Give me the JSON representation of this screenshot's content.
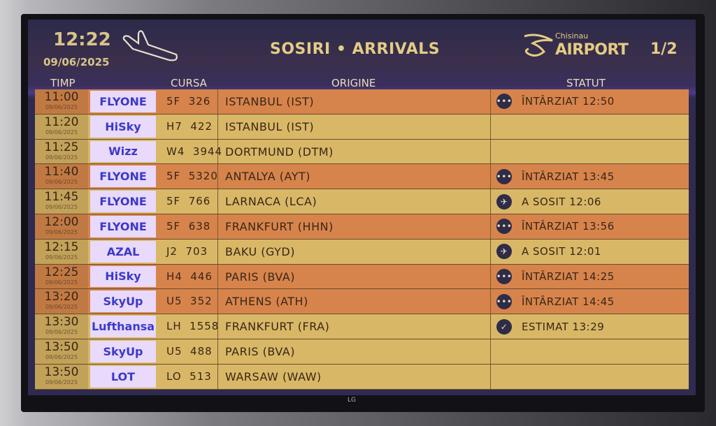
{
  "header": {
    "time": "12:22",
    "date": "09/06/2025",
    "title": "SOSIRI • ARRIVALS",
    "airport_small": "Chisinau",
    "airport_big": "AIRPORT",
    "page": "1/2"
  },
  "columns": {
    "time": "TIMP",
    "flight": "CURSA",
    "origin": "ORIGINE",
    "status": "STATUT"
  },
  "colors": {
    "delayed_row": "#d7844c",
    "normal_row": "#d8b867",
    "header_bg": "#2c2a4a",
    "header_text": "#e3cc86"
  },
  "flights": [
    {
      "time": "11:00",
      "date": "09/06/2025",
      "airline": "FLYONE",
      "flight": "5F  326",
      "origin": "ISTANBUL (IST)",
      "status": "ÎNTÂRZIAT 12:50",
      "icon": "clock-icon",
      "row": "orange"
    },
    {
      "time": "11:20",
      "date": "09/06/2025",
      "airline": "HiSky",
      "flight": "H7  422",
      "origin": "ISTANBUL (IST)",
      "status": "",
      "icon": "",
      "row": "yellow"
    },
    {
      "time": "11:25",
      "date": "09/06/2025",
      "airline": "Wizz",
      "flight": "W4  3944",
      "origin": "DORTMUND (DTM)",
      "status": "",
      "icon": "",
      "row": "yellow"
    },
    {
      "time": "11:40",
      "date": "09/06/2025",
      "airline": "FLYONE",
      "flight": "5F  5320",
      "origin": "ANTALYA (AYT)",
      "status": "ÎNTÂRZIAT 13:45",
      "icon": "clock-icon",
      "row": "orange"
    },
    {
      "time": "11:45",
      "date": "09/06/2025",
      "airline": "FLYONE",
      "flight": "5F  766",
      "origin": "LARNACA (LCA)",
      "status": "A SOSIT 12:06",
      "icon": "landing-icon",
      "row": "yellow"
    },
    {
      "time": "12:00",
      "date": "09/06/2025",
      "airline": "FLYONE",
      "flight": "5F  638",
      "origin": "FRANKFURT (HHN)",
      "status": "ÎNTÂRZIAT 13:56",
      "icon": "clock-icon",
      "row": "orange"
    },
    {
      "time": "12:15",
      "date": "09/06/2025",
      "airline": "AZAL",
      "flight": "J2  703",
      "origin": "BAKU (GYD)",
      "status": "A SOSIT 12:01",
      "icon": "landing-icon",
      "row": "yellow"
    },
    {
      "time": "12:25",
      "date": "09/06/2025",
      "airline": "HiSky",
      "flight": "H4  446",
      "origin": "PARIS (BVA)",
      "status": "ÎNTÂRZIAT 14:25",
      "icon": "clock-icon",
      "row": "orange"
    },
    {
      "time": "13:20",
      "date": "09/06/2025",
      "airline": "SkyUp",
      "flight": "U5  352",
      "origin": "ATHENS (ATH)",
      "status": "ÎNTÂRZIAT 14:45",
      "icon": "clock-icon",
      "row": "orange"
    },
    {
      "time": "13:30",
      "date": "09/06/2025",
      "airline": "Lufthansa",
      "flight": "LH  1558",
      "origin": "FRANKFURT (FRA)",
      "status": "ESTIMAT 13:29",
      "icon": "check-icon",
      "row": "yellow"
    },
    {
      "time": "13:50",
      "date": "09/06/2025",
      "airline": "SkyUp",
      "flight": "U5  488",
      "origin": "PARIS (BVA)",
      "status": "",
      "icon": "",
      "row": "yellow"
    },
    {
      "time": "13:50",
      "date": "09/06/2025",
      "airline": "LOT",
      "flight": "LO  513",
      "origin": "WARSAW (WAW)",
      "status": "",
      "icon": "",
      "row": "yellow"
    }
  ],
  "monitor_brand": "LG"
}
